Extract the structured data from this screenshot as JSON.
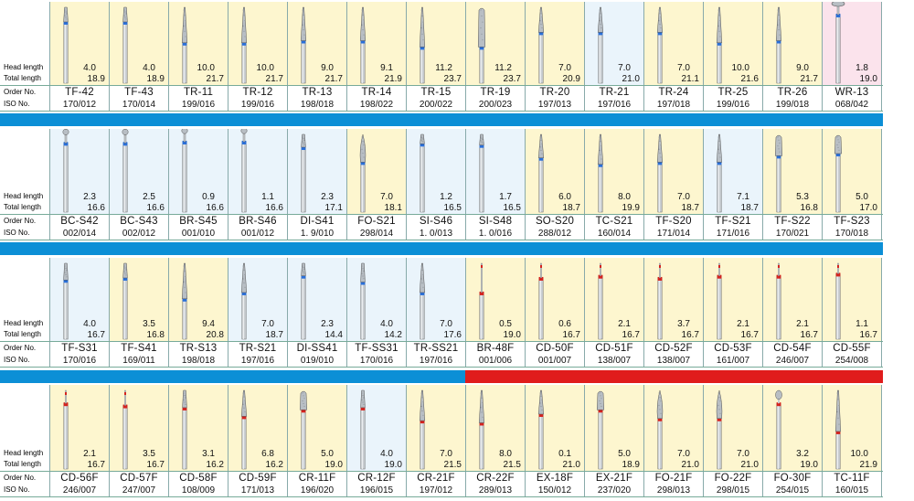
{
  "labels": {
    "head_length": "Head length",
    "total_length": "Total length",
    "order_no": "Order No.",
    "iso_no": "ISO No."
  },
  "colors": {
    "blue_bar": "#0c8fd6",
    "red_bar": "#e01c1c",
    "yellow_bg": "#fdf6cf",
    "blue_bg": "#eaf4fb",
    "pink_bg": "#fbe3ec"
  },
  "blocks": [
    {
      "items": [
        {
          "head": "4.0",
          "total": "18.9",
          "order": "TF-42",
          "iso": "170/012",
          "bg": "y",
          "shape": "taper",
          "band": "blue",
          "head_frac": 0.35
        },
        {
          "head": "4.0",
          "total": "18.9",
          "order": "TF-43",
          "iso": "170/014",
          "bg": "y",
          "shape": "taper",
          "band": "blue",
          "head_frac": 0.35
        },
        {
          "head": "10.0",
          "total": "21.7",
          "order": "TR-11",
          "iso": "199/016",
          "bg": "y",
          "shape": "cone",
          "band": "blue",
          "head_frac": 0.85
        },
        {
          "head": "10.0",
          "total": "21.7",
          "order": "TR-12",
          "iso": "199/016",
          "bg": "y",
          "shape": "cone",
          "band": "blue",
          "head_frac": 0.85
        },
        {
          "head": "9.0",
          "total": "21.7",
          "order": "TR-13",
          "iso": "198/018",
          "bg": "y",
          "shape": "cone",
          "band": "blue",
          "head_frac": 0.8
        },
        {
          "head": "9.1",
          "total": "21.9",
          "order": "TR-14",
          "iso": "198/022",
          "bg": "y",
          "shape": "cone",
          "band": "blue",
          "head_frac": 0.8
        },
        {
          "head": "11.2",
          "total": "23.7",
          "order": "TR-15",
          "iso": "200/022",
          "bg": "y",
          "shape": "cone",
          "band": "blue",
          "head_frac": 0.95
        },
        {
          "head": "11.2",
          "total": "23.7",
          "order": "TR-19",
          "iso": "200/023",
          "bg": "y",
          "shape": "wide",
          "band": "blue",
          "head_frac": 0.95
        },
        {
          "head": "7.0",
          "total": "20.9",
          "order": "TR-20",
          "iso": "197/013",
          "bg": "y",
          "shape": "cone",
          "band": "blue",
          "head_frac": 0.6
        },
        {
          "head": "7.0",
          "total": "21.0",
          "order": "TR-21",
          "iso": "197/016",
          "bg": "b",
          "shape": "cone",
          "band": "blue",
          "head_frac": 0.6
        },
        {
          "head": "7.0",
          "total": "21.1",
          "order": "TR-24",
          "iso": "197/018",
          "bg": "y",
          "shape": "cone",
          "band": "blue",
          "head_frac": 0.6
        },
        {
          "head": "10.0",
          "total": "21.6",
          "order": "TR-25",
          "iso": "199/016",
          "bg": "y",
          "shape": "cone",
          "band": "blue",
          "head_frac": 0.85
        },
        {
          "head": "9.0",
          "total": "21.7",
          "order": "TR-26",
          "iso": "199/018",
          "bg": "y",
          "shape": "cone",
          "band": "blue",
          "head_frac": 0.8
        },
        {
          "head": "1.8",
          "total": "19.0",
          "order": "WR-13",
          "iso": "068/042",
          "bg": "p",
          "shape": "wheel",
          "band": "blue",
          "head_frac": 0.15
        }
      ]
    },
    {
      "items": [
        {
          "head": "2.3",
          "total": "16.6",
          "order": "BC-S42",
          "iso": "002/014",
          "bg": "b",
          "shape": "ball",
          "band": "blue",
          "head_frac": 0.2
        },
        {
          "head": "2.5",
          "total": "16.6",
          "order": "BC-S43",
          "iso": "002/012",
          "bg": "b",
          "shape": "ball",
          "band": "blue",
          "head_frac": 0.2
        },
        {
          "head": "0.9",
          "total": "16.6",
          "order": "BR-S45",
          "iso": "001/010",
          "bg": "b",
          "shape": "ball",
          "band": "blue",
          "head_frac": 0.12
        },
        {
          "head": "1.1",
          "total": "16.6",
          "order": "BR-S46",
          "iso": "001/012",
          "bg": "b",
          "shape": "ball",
          "band": "blue",
          "head_frac": 0.14
        },
        {
          "head": "2.3",
          "total": "17.1",
          "order": "DI-S41",
          "iso": "1. 9/010",
          "bg": "b",
          "shape": "taper",
          "band": "blue",
          "head_frac": 0.3
        },
        {
          "head": "7.0",
          "total": "18.1",
          "order": "FO-S21",
          "iso": "298/014",
          "bg": "y",
          "shape": "flame",
          "band": "blue",
          "head_frac": 0.65
        },
        {
          "head": "1.2",
          "total": "16.5",
          "order": "SI-S46",
          "iso": "1. 0/013",
          "bg": "b",
          "shape": "taper",
          "band": "blue",
          "head_frac": 0.22
        },
        {
          "head": "1.7",
          "total": "16.5",
          "order": "SI-S48",
          "iso": "1. 0/016",
          "bg": "b",
          "shape": "taper",
          "band": "blue",
          "head_frac": 0.25
        },
        {
          "head": "6.0",
          "total": "18.7",
          "order": "SO-S20",
          "iso": "288/012",
          "bg": "y",
          "shape": "cone",
          "band": "blue",
          "head_frac": 0.55
        },
        {
          "head": "8.0",
          "total": "19.9",
          "order": "TC-S21",
          "iso": "160/014",
          "bg": "y",
          "shape": "cone",
          "band": "blue",
          "head_frac": 0.7
        },
        {
          "head": "7.0",
          "total": "18.7",
          "order": "TF-S20",
          "iso": "171/014",
          "bg": "y",
          "shape": "cone",
          "band": "blue",
          "head_frac": 0.65
        },
        {
          "head": "7.1",
          "total": "18.7",
          "order": "TF-S21",
          "iso": "171/016",
          "bg": "b",
          "shape": "cone",
          "band": "blue",
          "head_frac": 0.65
        },
        {
          "head": "5.3",
          "total": "16.8",
          "order": "TF-S22",
          "iso": "170/021",
          "bg": "y",
          "shape": "wide",
          "band": "blue",
          "head_frac": 0.5
        },
        {
          "head": "5.0",
          "total": "17.0",
          "order": "TF-S23",
          "iso": "170/018",
          "bg": "y",
          "shape": "wide",
          "band": "blue",
          "head_frac": 0.45
        }
      ]
    },
    {
      "items": [
        {
          "head": "4.0",
          "total": "16.7",
          "order": "TF-S31",
          "iso": "170/016",
          "bg": "b",
          "shape": "taper",
          "band": "blue",
          "head_frac": 0.4
        },
        {
          "head": "3.5",
          "total": "16.8",
          "order": "TF-S41",
          "iso": "169/011",
          "bg": "y",
          "shape": "taper",
          "band": "blue",
          "head_frac": 0.35
        },
        {
          "head": "9.4",
          "total": "20.8",
          "order": "TR-S13",
          "iso": "198/018",
          "bg": "y",
          "shape": "cone",
          "band": "blue",
          "head_frac": 0.85
        },
        {
          "head": "7.0",
          "total": "18.7",
          "order": "TR-S21",
          "iso": "197/016",
          "bg": "b",
          "shape": "cone",
          "band": "blue",
          "head_frac": 0.7
        },
        {
          "head": "2.3",
          "total": "14.4",
          "order": "DI-SS41",
          "iso": "019/010",
          "bg": "b",
          "shape": "taper",
          "band": "blue",
          "head_frac": 0.3
        },
        {
          "head": "4.0",
          "total": "14.2",
          "order": "TF-SS31",
          "iso": "170/016",
          "bg": "b",
          "shape": "taper",
          "band": "blue",
          "head_frac": 0.45
        },
        {
          "head": "7.0",
          "total": "17.6",
          "order": "TR-SS21",
          "iso": "197/016",
          "bg": "b",
          "shape": "cone",
          "band": "blue",
          "head_frac": 0.7
        },
        {
          "head": "0.5",
          "total": "19.0",
          "order": "BR-48F",
          "iso": "001/006",
          "bg": "y",
          "shape": "needle",
          "band": "red",
          "head_frac": 0.7
        },
        {
          "head": "0.6",
          "total": "16.7",
          "order": "CD-50F",
          "iso": "001/007",
          "bg": "y",
          "shape": "needle",
          "band": "red",
          "head_frac": 0.35
        },
        {
          "head": "2.1",
          "total": "16.7",
          "order": "CD-51F",
          "iso": "138/007",
          "bg": "y",
          "shape": "needle",
          "band": "red",
          "head_frac": 0.3
        },
        {
          "head": "3.7",
          "total": "16.7",
          "order": "CD-52F",
          "iso": "138/007",
          "bg": "y",
          "shape": "needle",
          "band": "red",
          "head_frac": 0.35
        },
        {
          "head": "2.1",
          "total": "16.7",
          "order": "CD-53F",
          "iso": "161/007",
          "bg": "y",
          "shape": "needle",
          "band": "red",
          "head_frac": 0.3
        },
        {
          "head": "2.1",
          "total": "16.7",
          "order": "CD-54F",
          "iso": "246/007",
          "bg": "y",
          "shape": "needle",
          "band": "red",
          "head_frac": 0.3
        },
        {
          "head": "1.1",
          "total": "16.7",
          "order": "CD-55F",
          "iso": "254/008",
          "bg": "y",
          "shape": "needle",
          "band": "red",
          "head_frac": 0.25
        }
      ]
    },
    {
      "items": [
        {
          "head": "2.1",
          "total": "16.7",
          "order": "CD-56F",
          "iso": "246/007",
          "bg": "y",
          "shape": "needle",
          "band": "red",
          "head_frac": 0.3
        },
        {
          "head": "3.5",
          "total": "16.7",
          "order": "CD-57F",
          "iso": "247/007",
          "bg": "y",
          "shape": "needle",
          "band": "red",
          "head_frac": 0.35
        },
        {
          "head": "3.1",
          "total": "16.2",
          "order": "CD-58F",
          "iso": "108/009",
          "bg": "y",
          "shape": "taper",
          "band": "red",
          "head_frac": 0.4
        },
        {
          "head": "6.8",
          "total": "16.2",
          "order": "CD-59F",
          "iso": "171/013",
          "bg": "y",
          "shape": "cone",
          "band": "red",
          "head_frac": 0.6
        },
        {
          "head": "5.0",
          "total": "19.0",
          "order": "CR-11F",
          "iso": "196/020",
          "bg": "y",
          "shape": "wide",
          "band": "red",
          "head_frac": 0.45
        },
        {
          "head": "4.0",
          "total": "19.0",
          "order": "CR-12F",
          "iso": "196/015",
          "bg": "b",
          "shape": "taper",
          "band": "red",
          "head_frac": 0.4
        },
        {
          "head": "7.0",
          "total": "21.5",
          "order": "CR-21F",
          "iso": "197/012",
          "bg": "y",
          "shape": "cone",
          "band": "red",
          "head_frac": 0.7
        },
        {
          "head": "8.0",
          "total": "21.5",
          "order": "CR-22F",
          "iso": "289/013",
          "bg": "y",
          "shape": "cone",
          "band": "red",
          "head_frac": 0.75
        },
        {
          "head": "0.1",
          "total": "21.0",
          "order": "EX-18F",
          "iso": "150/012",
          "bg": "y",
          "shape": "cone",
          "band": "red",
          "head_frac": 0.55
        },
        {
          "head": "5.0",
          "total": "18.9",
          "order": "EX-21F",
          "iso": "237/020",
          "bg": "y",
          "shape": "wide",
          "band": "red",
          "head_frac": 0.45
        },
        {
          "head": "7.0",
          "total": "21.0",
          "order": "FO-21F",
          "iso": "298/013",
          "bg": "y",
          "shape": "flame",
          "band": "red",
          "head_frac": 0.65
        },
        {
          "head": "7.0",
          "total": "21.0",
          "order": "FO-22F",
          "iso": "298/015",
          "bg": "y",
          "shape": "flame",
          "band": "red",
          "head_frac": 0.65
        },
        {
          "head": "3.2",
          "total": "19.0",
          "order": "FO-30F",
          "iso": "254/015",
          "bg": "y",
          "shape": "bud",
          "band": "red",
          "head_frac": 0.3
        },
        {
          "head": "10.0",
          "total": "21.9",
          "order": "TC-11F",
          "iso": "160/015",
          "bg": "y",
          "shape": "cone",
          "band": "red",
          "head_frac": 0.95
        }
      ]
    }
  ]
}
